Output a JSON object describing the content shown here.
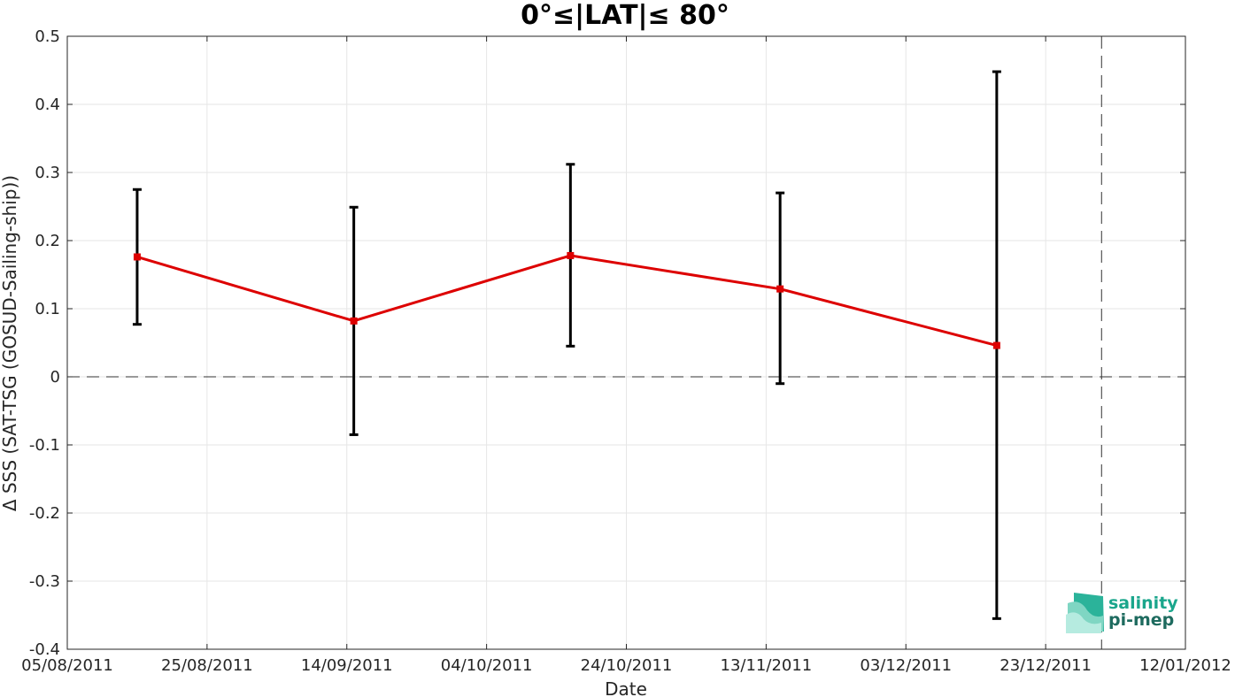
{
  "chart_data": {
    "type": "line",
    "title": "0°≤|LAT|≤ 80°",
    "xlabel": "Date",
    "ylabel": "Δ SSS (SAT-TSG (GOSUD-Sailing-ship))",
    "x_tick_labels": [
      "05/08/2011",
      "25/08/2011",
      "14/09/2011",
      "04/10/2011",
      "24/10/2011",
      "13/11/2011",
      "03/12/2011",
      "23/12/2011",
      "12/01/2012"
    ],
    "xlim": [
      "2011-08-05",
      "2012-01-12"
    ],
    "ylim": [
      -0.4,
      0.5
    ],
    "y_ticks": [
      -0.4,
      -0.3,
      -0.2,
      -0.1,
      0,
      0.1,
      0.2,
      0.3,
      0.4,
      0.5
    ],
    "y_tick_labels": [
      "-0.4",
      "-0.3",
      "-0.2",
      "-0.1",
      "0",
      "0.1",
      "0.2",
      "0.3",
      "0.4",
      "0.5"
    ],
    "grid": true,
    "series": [
      {
        "x": [
          "2011-08-15",
          "2011-09-15",
          "2011-10-16",
          "2011-11-15",
          "2011-12-16"
        ],
        "y": [
          0.176,
          0.082,
          0.178,
          0.129,
          0.046
        ],
        "err_lower": [
          0.077,
          -0.085,
          0.045,
          -0.01,
          -0.355
        ],
        "err_upper": [
          0.275,
          0.249,
          0.312,
          0.27,
          0.448
        ],
        "color": "#dd0000"
      }
    ],
    "reference_lines": [
      {
        "axis": "y",
        "value": 0,
        "style": "dashed"
      },
      {
        "axis": "x",
        "value": "2011-12-31",
        "style": "dashed"
      }
    ]
  },
  "logo": {
    "line1": "salinity",
    "line2": "pi-mep",
    "color": "#1aa68c",
    "line2_color": "#1e6b5f"
  }
}
